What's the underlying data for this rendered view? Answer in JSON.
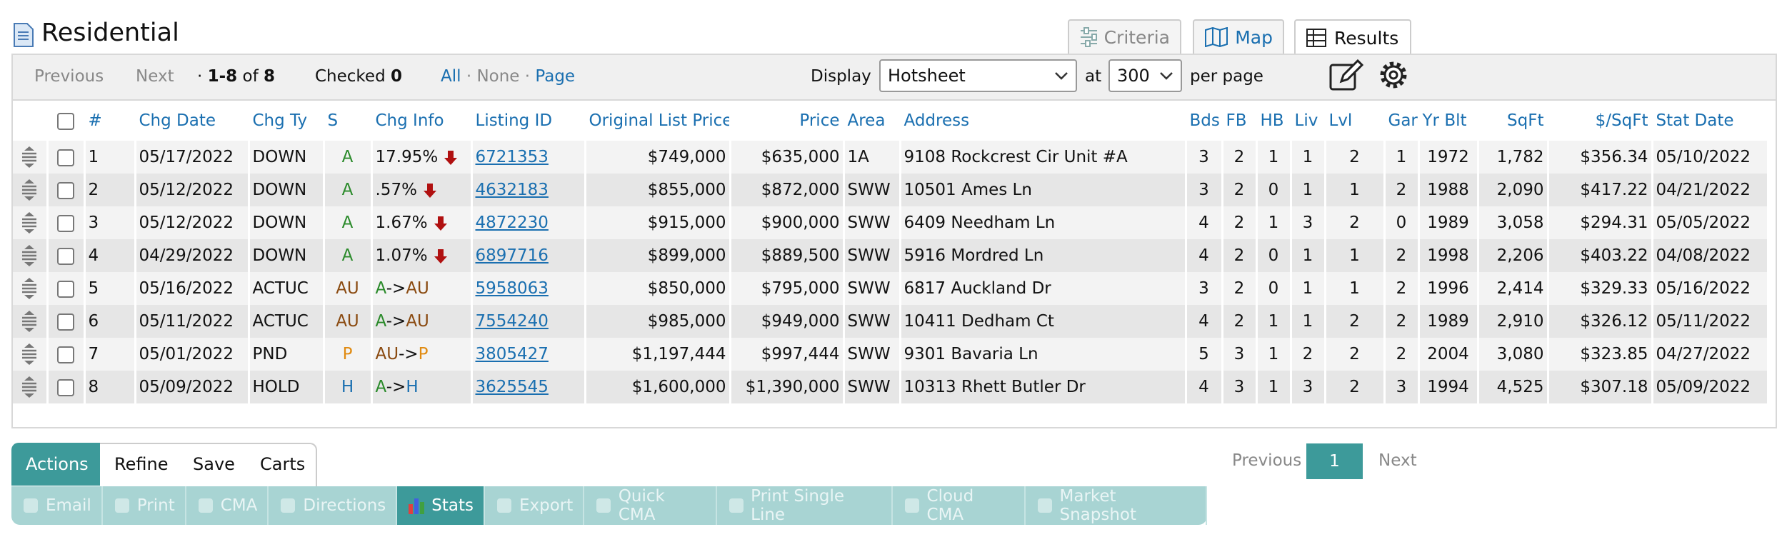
{
  "header": {
    "title": "Residential"
  },
  "tabs": [
    "Criteria",
    "Map",
    "Results"
  ],
  "toolbar": {
    "previous": "Previous",
    "next": "Next",
    "dot": "·",
    "range": "1-8",
    "of": "of",
    "total": "8",
    "checked_label": "Checked",
    "checked_count": "0",
    "all": "All",
    "none": "None",
    "page": "Page",
    "display_label": "Display",
    "display_value": "Hotsheet",
    "at": "at",
    "per_page_value": "300",
    "per_page_label": "per page"
  },
  "table": {
    "columns": [
      "#",
      "Chg Date",
      "Chg Ty",
      "S",
      "Chg Info",
      "Listing ID",
      "Original List Price",
      "Price",
      "Area",
      "Address",
      "Bds",
      "FB",
      "HB",
      "Liv",
      "Lvl",
      "Gar",
      "Yr Blt",
      "SqFt",
      "$/SqFt",
      "Stat Date"
    ],
    "rows": [
      [
        "1",
        "05/17/2022",
        "DOWN",
        "A",
        {
          "text": "17.95%",
          "down": true
        },
        "6721353",
        "$749,000",
        "$635,000",
        "1A",
        "9108 Rockcrest Cir Unit #A",
        "3",
        "2",
        "1",
        "1",
        "2",
        "1",
        "1972",
        "1,782",
        "$356.34",
        "05/10/2022"
      ],
      [
        "2",
        "05/12/2022",
        "DOWN",
        "A",
        {
          "text": ".57%",
          "down": true
        },
        "4632183",
        "$855,000",
        "$872,000",
        "SWW",
        "10501 Ames Ln",
        "3",
        "2",
        "0",
        "1",
        "1",
        "2",
        "1988",
        "2,090",
        "$417.22",
        "04/21/2022"
      ],
      [
        "3",
        "05/12/2022",
        "DOWN",
        "A",
        {
          "text": "1.67%",
          "down": true
        },
        "4872230",
        "$915,000",
        "$900,000",
        "SWW",
        "6409 Needham Ln",
        "4",
        "2",
        "1",
        "3",
        "2",
        "0",
        "1989",
        "3,058",
        "$294.31",
        "05/05/2022"
      ],
      [
        "4",
        "04/29/2022",
        "DOWN",
        "A",
        {
          "text": "1.07%",
          "down": true
        },
        "6897716",
        "$899,000",
        "$889,500",
        "SWW",
        "5916 Mordred Ln",
        "4",
        "2",
        "0",
        "1",
        "1",
        "2",
        "1998",
        "2,206",
        "$403.22",
        "04/08/2022"
      ],
      [
        "5",
        "05/16/2022",
        "ACTUC",
        "AU",
        {
          "from": "A",
          "arrow": "->",
          "to": "AU"
        },
        "5958063",
        "$850,000",
        "$795,000",
        "SWW",
        "6817 Auckland Dr",
        "3",
        "2",
        "0",
        "1",
        "1",
        "2",
        "1996",
        "2,414",
        "$329.33",
        "05/16/2022"
      ],
      [
        "6",
        "05/11/2022",
        "ACTUC",
        "AU",
        {
          "from": "A",
          "arrow": "->",
          "to": "AU"
        },
        "7554240",
        "$985,000",
        "$949,000",
        "SWW",
        "10411 Dedham Ct",
        "4",
        "2",
        "1",
        "1",
        "2",
        "2",
        "1989",
        "2,910",
        "$326.12",
        "05/11/2022"
      ],
      [
        "7",
        "05/01/2022",
        "PND",
        "P",
        {
          "from": "AU",
          "arrow": "->",
          "to": "P"
        },
        "3805427",
        "$1,197,444",
        "$997,444",
        "SWW",
        "9301 Bavaria Ln",
        "5",
        "3",
        "1",
        "2",
        "2",
        "2",
        "2004",
        "3,080",
        "$323.85",
        "04/27/2022"
      ],
      [
        "8",
        "05/09/2022",
        "HOLD",
        "H",
        {
          "from": "A",
          "arrow": "->",
          "to": "H"
        },
        "3625545",
        "$1,600,000",
        "$1,390,000",
        "SWW",
        "10313 Rhett Butler Dr",
        "4",
        "3",
        "1",
        "3",
        "2",
        "3",
        "1994",
        "4,525",
        "$307.18",
        "05/09/2022"
      ]
    ]
  },
  "bottom_tabs": [
    "Actions",
    "Refine",
    "Save",
    "Carts"
  ],
  "bottom_pager": {
    "previous": "Previous",
    "current": "1",
    "next": "Next"
  },
  "actions": [
    {
      "label": "Email",
      "active": false
    },
    {
      "label": "Print",
      "active": false
    },
    {
      "label": "CMA",
      "active": false
    },
    {
      "label": "Directions",
      "active": false
    },
    {
      "label": "Stats",
      "active": true
    },
    {
      "label": "Export",
      "active": false
    },
    {
      "label": "Quick CMA",
      "active": false
    },
    {
      "label": "Print Single Line",
      "active": false
    },
    {
      "label": "Cloud CMA",
      "active": false
    },
    {
      "label": "Market Snapshot",
      "active": false
    }
  ]
}
